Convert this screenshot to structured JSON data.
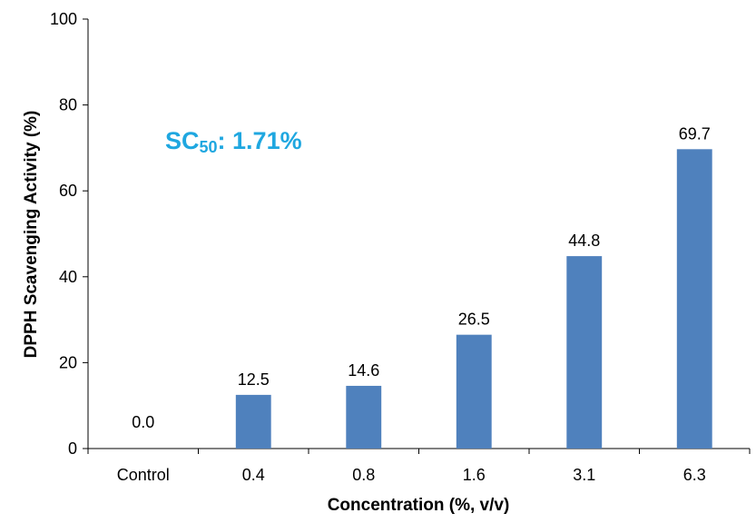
{
  "chart_data": {
    "type": "bar",
    "categories": [
      "Control",
      "0.4",
      "0.8",
      "1.6",
      "3.1",
      "6.3"
    ],
    "values": [
      0.0,
      12.5,
      14.6,
      26.5,
      44.8,
      69.7
    ],
    "data_labels": [
      "0.0",
      "12.5",
      "14.6",
      "26.5",
      "44.8",
      "69.7"
    ],
    "xlabel": "Concentration (%, v/v)",
    "ylabel": "DPPH Scavenging Activity (%)",
    "ylim": [
      0,
      100
    ],
    "yticks": [
      0,
      20,
      40,
      60,
      80,
      100
    ],
    "grid": false,
    "bar_color": "#4f81bd",
    "annotation": {
      "prefix": "SC",
      "subscript": "50",
      "suffix": ": 1.71%",
      "color": "#1fa7e0"
    }
  }
}
